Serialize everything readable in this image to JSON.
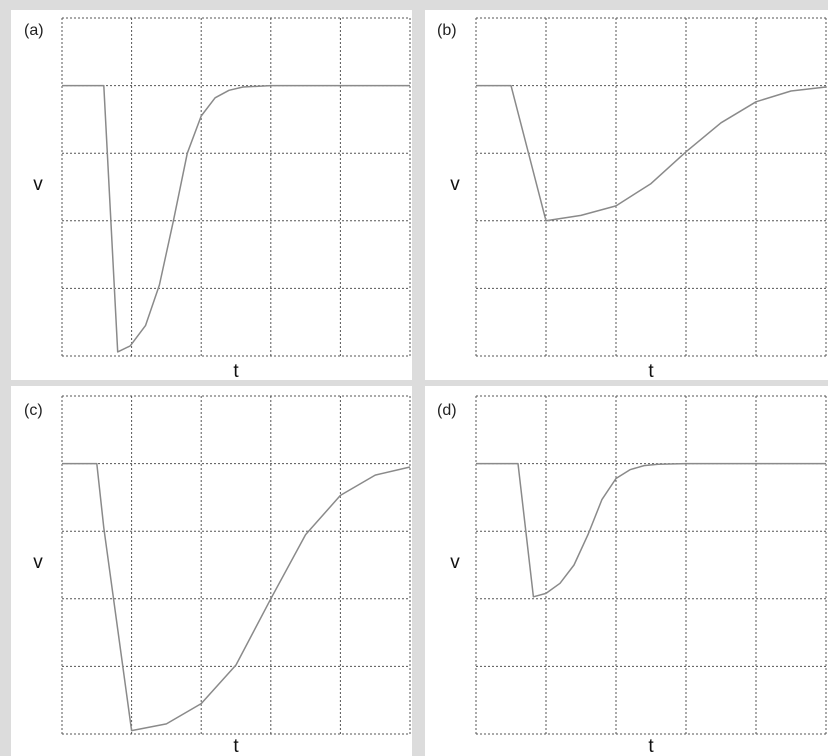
{
  "colors": {
    "background": "#dcdcdc",
    "panel": "#ffffff",
    "grid": "#555555",
    "trace": "#8a8a8a"
  },
  "chart_data": [
    {
      "panel": "(a)",
      "type": "line",
      "xlabel": "t",
      "ylabel": "v",
      "grid": true,
      "xlim": [
        0,
        5
      ],
      "ylim": [
        -4,
        1
      ],
      "x": [
        0,
        0.6,
        0.8,
        0.98,
        1.2,
        1.4,
        1.6,
        1.8,
        2.0,
        2.2,
        2.4,
        2.6,
        3.0,
        3.5,
        5.0
      ],
      "y": [
        0,
        0,
        -3.94,
        -3.85,
        -3.55,
        -2.95,
        -2.0,
        -1.0,
        -0.45,
        -0.18,
        -0.07,
        -0.02,
        0,
        0,
        0
      ]
    },
    {
      "panel": "(b)",
      "type": "line",
      "xlabel": "t",
      "ylabel": "v",
      "grid": true,
      "xlim": [
        0,
        5
      ],
      "ylim": [
        -4,
        1
      ],
      "x": [
        0,
        0.5,
        1.0,
        1.5,
        2.0,
        2.5,
        3.0,
        3.5,
        4.0,
        4.5,
        5.0
      ],
      "y": [
        0,
        0,
        -2.0,
        -1.92,
        -1.78,
        -1.45,
        -0.98,
        -0.55,
        -0.24,
        -0.08,
        -0.02
      ]
    },
    {
      "panel": "(c)",
      "type": "line",
      "xlabel": "t",
      "ylabel": "v",
      "grid": true,
      "xlim": [
        0,
        5
      ],
      "ylim": [
        -4,
        1
      ],
      "x": [
        0,
        0.5,
        0.6,
        1.0,
        1.5,
        2.0,
        2.5,
        3.0,
        3.5,
        4.0,
        4.5,
        5.0
      ],
      "y": [
        0,
        0,
        -0.95,
        -3.95,
        -3.85,
        -3.55,
        -2.98,
        -2.0,
        -1.05,
        -0.47,
        -0.17,
        -0.05
      ]
    },
    {
      "panel": "(d)",
      "type": "line",
      "xlabel": "t",
      "ylabel": "v",
      "grid": true,
      "xlim": [
        0,
        5
      ],
      "ylim": [
        -4,
        1
      ],
      "x": [
        0,
        0.6,
        0.82,
        1.0,
        1.2,
        1.4,
        1.6,
        1.8,
        2.0,
        2.2,
        2.4,
        2.6,
        3.0,
        5.0
      ],
      "y": [
        0,
        0,
        -1.97,
        -1.92,
        -1.77,
        -1.5,
        -1.05,
        -0.53,
        -0.22,
        -0.09,
        -0.03,
        -0.01,
        0,
        0
      ]
    }
  ]
}
